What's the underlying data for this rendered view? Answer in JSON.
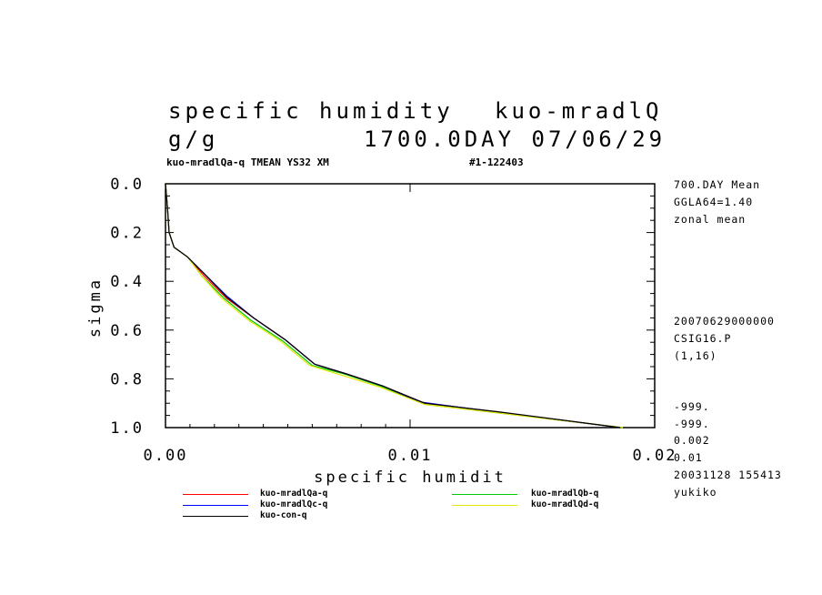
{
  "header": {
    "title_line1_left": "specific humidity",
    "title_line1_right": "kuo-mradlQ",
    "title_line2_left": "g/g",
    "title_line2_right": "1700.0DAY 07/06/29",
    "subtitle_left": "kuo-mradlQa-q TMEAN YS32 XM",
    "subtitle_right": "#1-122403"
  },
  "side_info": {
    "top": [
      "700.DAY Mean",
      "GGLA64=1.40",
      "zonal mean"
    ],
    "middle": [
      "20070629000000",
      "CSIG16.P",
      "(1,16)"
    ],
    "bottom": [
      "-999.",
      "-999.",
      "0.002",
      "0.01",
      "20031128 155413",
      "yukiko"
    ]
  },
  "legend": [
    {
      "label": "kuo-mradlQa-q",
      "color": "#ff0000"
    },
    {
      "label": "kuo-mradlQc-q",
      "color": "#0000ff"
    },
    {
      "label": "kuo-con-q",
      "color": "#000000"
    },
    {
      "label": "kuo-mradlQb-q",
      "color": "#00cc00"
    },
    {
      "label": "kuo-mradlQd-q",
      "color": "#e6e600"
    }
  ],
  "chart_data": {
    "type": "line",
    "xlabel": "specific humidit",
    "ylabel": "sigma",
    "xlim": [
      0,
      0.02
    ],
    "ylim": [
      1.0,
      0.0
    ],
    "x_ticks": [
      "0.00",
      "0.01",
      "0.02"
    ],
    "y_ticks": [
      "0.0",
      "0.2",
      "0.4",
      "0.6",
      "0.8",
      "1.0"
    ],
    "series": [
      {
        "name": "kuo-mradlQa-q",
        "color": "#ff0000",
        "x": [
          0.0,
          8e-05,
          0.00015,
          0.00035,
          0.0009,
          0.0016,
          0.0025,
          0.0036,
          0.0049,
          0.0061,
          0.0074,
          0.0089,
          0.0106,
          0.0135,
          0.0186
        ],
        "y": [
          0.0,
          0.1,
          0.2,
          0.26,
          0.3,
          0.38,
          0.47,
          0.55,
          0.64,
          0.74,
          0.78,
          0.83,
          0.9,
          0.935,
          1.0
        ]
      },
      {
        "name": "kuo-mradlQb-q",
        "color": "#00cc00",
        "x": [
          0.0,
          8e-05,
          0.00015,
          0.00035,
          0.0009,
          0.0015,
          0.0024,
          0.0035,
          0.0048,
          0.006,
          0.0073,
          0.0088,
          0.0106,
          0.0136,
          0.0187
        ],
        "y": [
          0.0,
          0.1,
          0.2,
          0.26,
          0.3,
          0.38,
          0.47,
          0.56,
          0.645,
          0.745,
          0.78,
          0.83,
          0.905,
          0.94,
          1.0
        ]
      },
      {
        "name": "kuo-mradlQc-q",
        "color": "#0000ff",
        "x": [
          0.0,
          8e-05,
          0.00015,
          0.00035,
          0.0009,
          0.0016,
          0.0025,
          0.0036,
          0.0049,
          0.0061,
          0.0074,
          0.0089,
          0.0104,
          0.0134,
          0.0186
        ],
        "y": [
          0.0,
          0.1,
          0.2,
          0.26,
          0.3,
          0.37,
          0.46,
          0.55,
          0.64,
          0.74,
          0.78,
          0.83,
          0.895,
          0.935,
          1.0
        ]
      },
      {
        "name": "kuo-mradlQd-q",
        "color": "#e6e600",
        "x": [
          0.0,
          8e-05,
          0.00015,
          0.00035,
          0.0009,
          0.0015,
          0.0023,
          0.0034,
          0.0047,
          0.0059,
          0.0072,
          0.0088,
          0.0106,
          0.0136,
          0.0187
        ],
        "y": [
          0.0,
          0.1,
          0.2,
          0.26,
          0.3,
          0.38,
          0.47,
          0.56,
          0.645,
          0.745,
          0.785,
          0.835,
          0.905,
          0.94,
          1.0
        ]
      },
      {
        "name": "kuo-con-q",
        "color": "#000000",
        "x": [
          0.0,
          8e-05,
          0.00015,
          0.00035,
          0.0009,
          0.0016,
          0.0025,
          0.0036,
          0.0049,
          0.0061,
          0.0074,
          0.0089,
          0.0106,
          0.0136,
          0.0186
        ],
        "y": [
          0.0,
          0.1,
          0.2,
          0.26,
          0.3,
          0.37,
          0.465,
          0.55,
          0.64,
          0.74,
          0.78,
          0.83,
          0.9,
          0.935,
          1.0
        ]
      }
    ]
  }
}
